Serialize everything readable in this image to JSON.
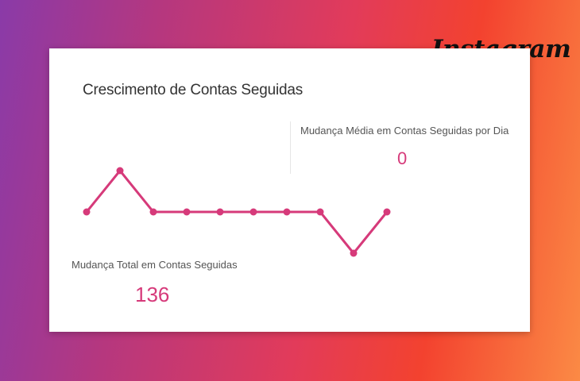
{
  "brand": {
    "logo_text": "Instagram"
  },
  "card": {
    "title": "Crescimento de Contas Seguidas",
    "average_label": "Mudança Média em Contas Seguidas por Dia",
    "average_value": "0",
    "total_label": "Mudança Total em Contas Seguidas",
    "total_value": "136"
  },
  "colors": {
    "accent": "#d63a7a",
    "card_bg": "#ffffff"
  },
  "chart_data": {
    "type": "line",
    "title": "",
    "xlabel": "",
    "ylabel": "",
    "series": [
      {
        "values": [
          0,
          1,
          0,
          0,
          0,
          0,
          0,
          0,
          -1,
          0
        ]
      }
    ],
    "ylim": [
      -1,
      1
    ],
    "grid": false
  }
}
